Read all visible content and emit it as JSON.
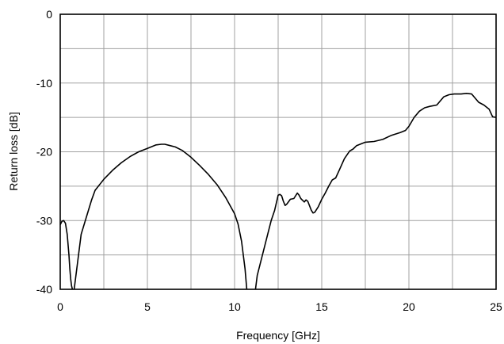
{
  "chart_data": {
    "type": "line",
    "title": "",
    "xlabel": "Frequency [GHz]",
    "ylabel": "Return loss [dB]",
    "xlim": [
      0,
      25
    ],
    "ylim": [
      -40,
      0
    ],
    "x_ticks": [
      0,
      5,
      10,
      15,
      20,
      25
    ],
    "y_ticks": [
      -40,
      -30,
      -20,
      -10,
      0
    ],
    "x_tick_labels": [
      "0",
      "5",
      "10",
      "15",
      "20",
      "25"
    ],
    "y_tick_labels": [
      "-40",
      "-30",
      "-20",
      "-10",
      "0"
    ],
    "grid": true,
    "legend": "none",
    "series": [
      {
        "color": "#000000",
        "segments": [
          {
            "x": [
              0.0,
              0.1,
              0.2,
              0.3,
              0.4,
              0.5,
              0.55,
              0.6,
              0.65,
              0.7
            ],
            "y": [
              -30.6,
              -30.1,
              -30.0,
              -30.4,
              -32.0,
              -35.0,
              -37.0,
              -38.5,
              -39.5,
              -40.0
            ]
          },
          {
            "x": [
              0.8,
              0.9,
              1.0,
              1.2,
              1.5,
              1.8,
              2.0,
              2.5,
              3.0,
              3.5,
              4.0,
              4.5,
              5.0,
              5.5,
              5.8,
              6.0,
              6.3,
              6.6,
              7.0,
              7.5,
              8.0,
              8.5,
              9.0,
              9.5,
              10.0,
              10.2,
              10.4,
              10.6,
              10.7
            ],
            "y": [
              -40.0,
              -38.0,
              -36.0,
              -32.0,
              -29.5,
              -27.0,
              -25.6,
              -24.0,
              -22.7,
              -21.6,
              -20.7,
              -20.0,
              -19.5,
              -19.0,
              -18.9,
              -18.9,
              -19.1,
              -19.3,
              -19.8,
              -20.8,
              -22.0,
              -23.3,
              -24.8,
              -26.7,
              -29.0,
              -30.5,
              -33.0,
              -37.0,
              -40.0
            ]
          },
          {
            "x": [
              11.2,
              11.3,
              11.6,
              11.9,
              12.1,
              12.3,
              12.5,
              12.6,
              12.7,
              12.8,
              12.9,
              13.0,
              13.2,
              13.4,
              13.6,
              13.7,
              13.8,
              14.0,
              14.1,
              14.2,
              14.4,
              14.5,
              14.6,
              14.8,
              15.0,
              15.2,
              15.4,
              15.6,
              15.8,
              16.0,
              16.3,
              16.6,
              16.8,
              17.0,
              17.5,
              18.0,
              18.5,
              19.0,
              19.5,
              19.8,
              20.0,
              20.3,
              20.6,
              20.9,
              21.2,
              21.6,
              22.0,
              22.3,
              22.6,
              23.0,
              23.3,
              23.6,
              24.0,
              24.3,
              24.6,
              24.8,
              25.0
            ],
            "y": [
              -40.0,
              -38.0,
              -35.0,
              -32.0,
              -30.0,
              -28.5,
              -26.3,
              -26.2,
              -26.4,
              -27.2,
              -27.8,
              -27.6,
              -26.9,
              -26.8,
              -26.0,
              -26.3,
              -26.8,
              -27.3,
              -27.0,
              -27.2,
              -28.5,
              -28.9,
              -28.8,
              -28.0,
              -26.9,
              -26.0,
              -25.0,
              -24.1,
              -23.8,
              -22.7,
              -21.0,
              -19.9,
              -19.6,
              -19.1,
              -18.6,
              -18.5,
              -18.2,
              -17.6,
              -17.2,
              -16.9,
              -16.3,
              -15.0,
              -14.1,
              -13.6,
              -13.4,
              -13.2,
              -12.0,
              -11.7,
              -11.6,
              -11.6,
              -11.5,
              -11.6,
              -12.8,
              -13.2,
              -13.8,
              -14.9,
              -15.0
            ]
          }
        ]
      }
    ]
  }
}
